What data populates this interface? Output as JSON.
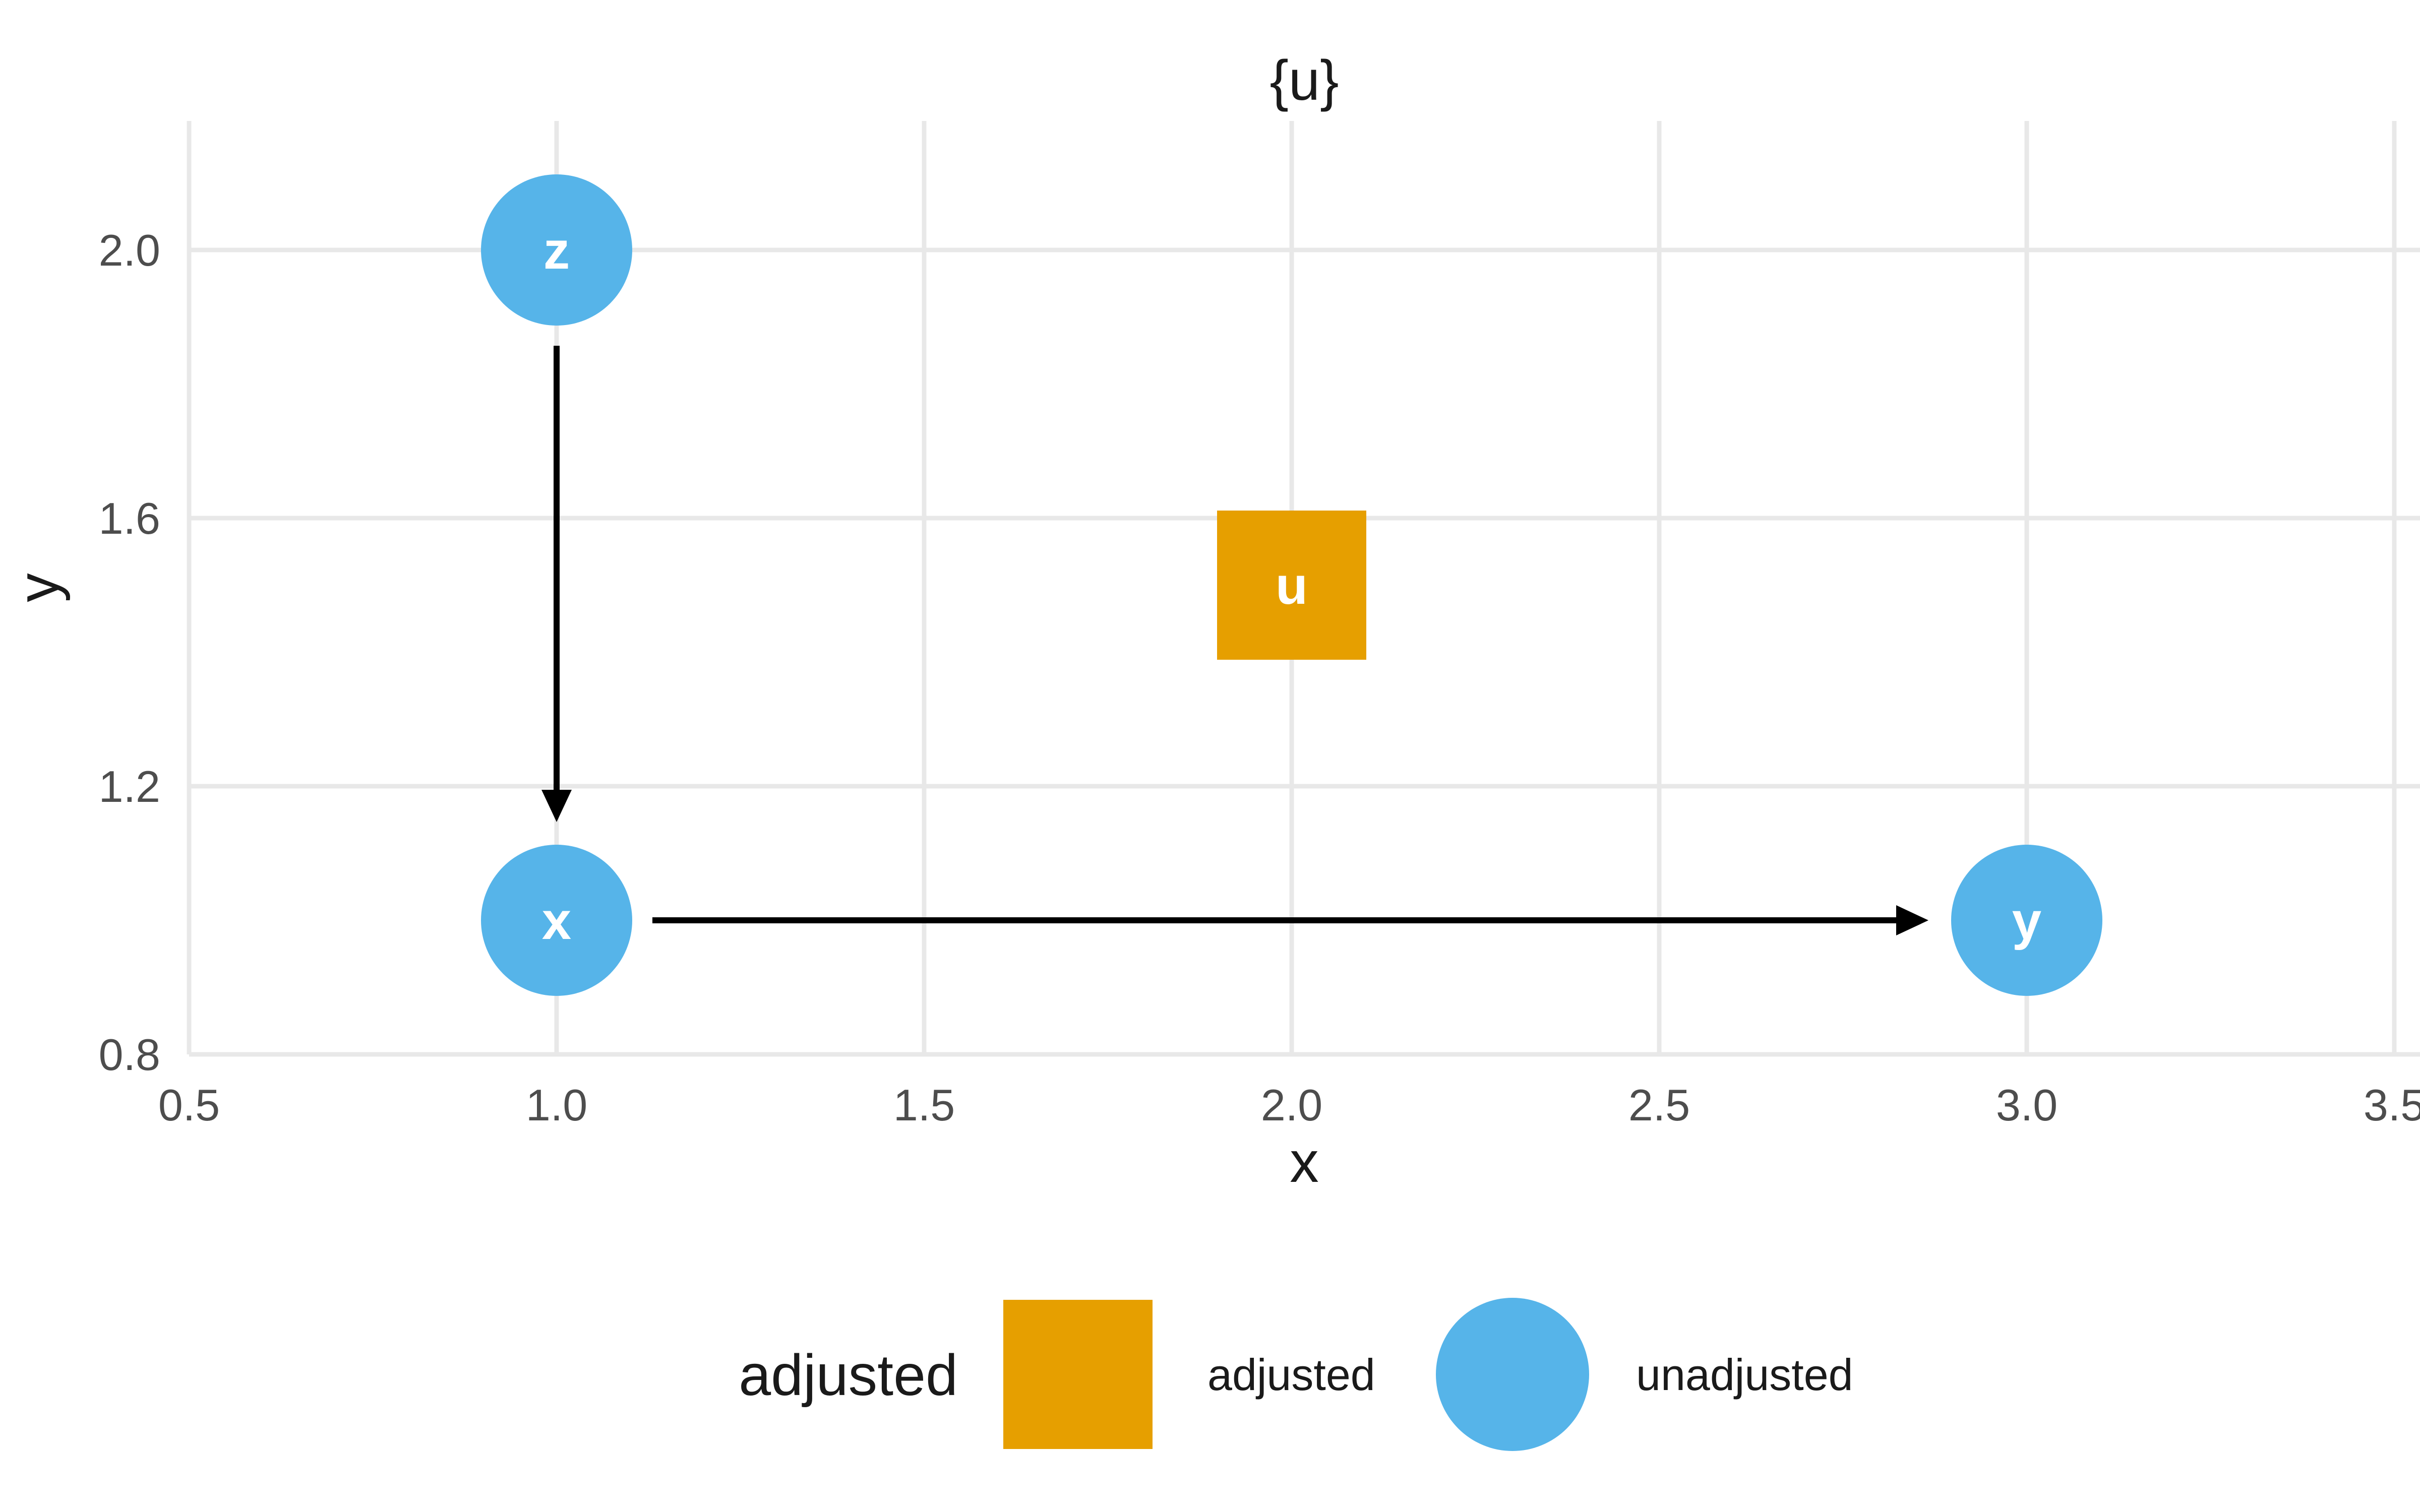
{
  "chart_data": {
    "type": "scatter",
    "title": "{u}",
    "xlabel": "x",
    "ylabel": "y",
    "xlim": [
      0.5,
      3.5
    ],
    "ylim": [
      0.8,
      2.2
    ],
    "grid": true,
    "x_ticks": [
      "0.5",
      "1.0",
      "1.5",
      "2.0",
      "2.5",
      "3.0",
      "3.5"
    ],
    "y_ticks": [
      "0.8",
      "1.2",
      "1.6",
      "2.0"
    ],
    "points": [
      {
        "label": "z",
        "x": 1.0,
        "y": 2.0,
        "shape": "circle",
        "status": "unadjusted",
        "color": "#56B4E9",
        "label_color": "#FFFFFF"
      },
      {
        "label": "x",
        "x": 1.0,
        "y": 1.0,
        "shape": "circle",
        "status": "unadjusted",
        "color": "#56B4E9",
        "label_color": "#FFFFFF"
      },
      {
        "label": "y",
        "x": 3.0,
        "y": 1.0,
        "shape": "circle",
        "status": "unadjusted",
        "color": "#56B4E9",
        "label_color": "#FFFFFF"
      },
      {
        "label": "u",
        "x": 2.0,
        "y": 1.5,
        "shape": "square",
        "status": "adjusted",
        "color": "#E69F00",
        "label_color": "#FFFFFF"
      }
    ],
    "edges": [
      {
        "from": "z",
        "to": "x"
      },
      {
        "from": "x",
        "to": "y"
      }
    ],
    "legend": {
      "title": "adjusted",
      "position": "bottom",
      "items": [
        {
          "label": "adjusted",
          "shape": "square",
          "color": "#E69F00"
        },
        {
          "label": "unadjusted",
          "shape": "circle",
          "color": "#56B4E9"
        }
      ]
    },
    "colors": {
      "grid": "#E8E8E8",
      "tick_text": "#4D4D4D",
      "edge": "#000000",
      "background": "#FFFFFF"
    }
  }
}
